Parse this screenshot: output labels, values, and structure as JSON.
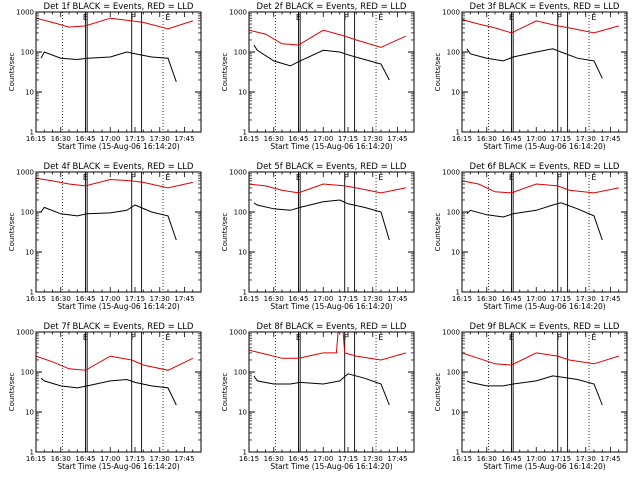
{
  "chart_data": [
    {
      "type": "line",
      "title": "Det 1f BLACK = Events, RED = LLD",
      "xlabel": "Start Time (15-Aug-06 16:14:20)",
      "ylabel": "Counts/sec",
      "xlim": [
        "16:15",
        "17:55"
      ],
      "ylim": [
        1,
        1000
      ],
      "y_scale": "log",
      "x_ticks": [
        "16:15",
        "16:30",
        "16:45",
        "17:00",
        "17:15",
        "17:30",
        "17:45"
      ],
      "y_ticks": [
        "1",
        "10",
        "100",
        "1000"
      ],
      "markers": [
        {
          "label": "E",
          "time": "16:44"
        },
        {
          "label": "F",
          "time": "17:13"
        },
        {
          "label": "E",
          "time": "17:34"
        }
      ],
      "solid_lines": [
        "16:45",
        "16:46",
        "17:13",
        "17:19"
      ],
      "dotted_lines": [
        "16:31",
        "17:32"
      ],
      "series": [
        {
          "name": "Events",
          "color": "#000000",
          "x": [
            "16:18",
            "16:20",
            "16:30",
            "16:40",
            "16:46",
            "17:00",
            "17:10",
            "17:15",
            "17:25",
            "17:35",
            "17:40"
          ],
          "values": [
            70,
            100,
            70,
            65,
            70,
            75,
            100,
            90,
            75,
            70,
            18
          ]
        },
        {
          "name": "LLD",
          "color": "#e00000",
          "x": [
            "16:15",
            "16:25",
            "16:35",
            "16:45",
            "17:00",
            "17:13",
            "17:20",
            "17:35",
            "17:50"
          ],
          "values": [
            700,
            550,
            420,
            450,
            700,
            600,
            550,
            380,
            600
          ]
        }
      ]
    },
    {
      "type": "line",
      "title": "Det 2f BLACK = Events, RED = LLD",
      "xlabel": "Start Time (15-Aug-06 16:14:20)",
      "ylabel": "Counts/sec",
      "xlim": [
        "16:15",
        "17:55"
      ],
      "ylim": [
        1,
        1000
      ],
      "y_scale": "log",
      "x_ticks": [
        "16:15",
        "16:30",
        "16:45",
        "17:00",
        "17:15",
        "17:30",
        "17:45"
      ],
      "y_ticks": [
        "1",
        "10",
        "100",
        "1000"
      ],
      "markers": [
        {
          "label": "E",
          "time": "16:44"
        },
        {
          "label": "F",
          "time": "17:13"
        },
        {
          "label": "E",
          "time": "17:34"
        }
      ],
      "solid_lines": [
        "16:45",
        "16:46",
        "17:13",
        "17:19"
      ],
      "dotted_lines": [
        "16:31",
        "17:32"
      ],
      "series": [
        {
          "name": "Events",
          "color": "#000000",
          "x": [
            "16:18",
            "16:20",
            "16:30",
            "16:40",
            "16:46",
            "17:00",
            "17:10",
            "17:15",
            "17:25",
            "17:35",
            "17:40"
          ],
          "values": [
            150,
            110,
            60,
            45,
            60,
            110,
            100,
            85,
            65,
            50,
            20
          ]
        },
        {
          "name": "LLD",
          "color": "#e00000",
          "x": [
            "16:15",
            "16:25",
            "16:35",
            "16:45",
            "17:00",
            "17:13",
            "17:20",
            "17:35",
            "17:50"
          ],
          "values": [
            350,
            280,
            160,
            150,
            350,
            250,
            200,
            130,
            250
          ]
        }
      ]
    },
    {
      "type": "line",
      "title": "Det 3f BLACK = Events, RED = LLD",
      "xlabel": "Start Time (15-Aug-06 16:14:20)",
      "ylabel": "Counts/sec",
      "xlim": [
        "16:15",
        "17:55"
      ],
      "ylim": [
        1,
        1000
      ],
      "y_scale": "log",
      "x_ticks": [
        "16:15",
        "16:30",
        "16:45",
        "17:00",
        "17:15",
        "17:30",
        "17:45"
      ],
      "y_ticks": [
        "1",
        "10",
        "100",
        "1000"
      ],
      "markers": [
        {
          "label": "E",
          "time": "16:44"
        },
        {
          "label": "F",
          "time": "17:13"
        },
        {
          "label": "E",
          "time": "17:34"
        }
      ],
      "solid_lines": [
        "16:45",
        "16:46",
        "17:13",
        "17:19"
      ],
      "dotted_lines": [
        "16:31",
        "17:32"
      ],
      "series": [
        {
          "name": "Events",
          "color": "#000000",
          "x": [
            "16:18",
            "16:20",
            "16:30",
            "16:40",
            "16:46",
            "17:00",
            "17:10",
            "17:15",
            "17:25",
            "17:35",
            "17:40"
          ],
          "values": [
            120,
            90,
            70,
            60,
            75,
            100,
            120,
            100,
            70,
            60,
            22
          ]
        },
        {
          "name": "LLD",
          "color": "#e00000",
          "x": [
            "16:15",
            "16:25",
            "16:35",
            "16:45",
            "17:00",
            "17:13",
            "17:20",
            "17:35",
            "17:50"
          ],
          "values": [
            650,
            500,
            400,
            300,
            600,
            450,
            400,
            300,
            450
          ]
        }
      ]
    },
    {
      "type": "line",
      "title": "Det 4f BLACK = Events, RED = LLD",
      "xlabel": "Start Time (15-Aug-06 16:14:20)",
      "ylabel": "Counts/sec",
      "xlim": [
        "16:15",
        "17:55"
      ],
      "ylim": [
        1,
        1000
      ],
      "y_scale": "log",
      "x_ticks": [
        "16:15",
        "16:30",
        "16:45",
        "17:00",
        "17:15",
        "17:30",
        "17:45"
      ],
      "y_ticks": [
        "1",
        "10",
        "100",
        "1000"
      ],
      "markers": [
        {
          "label": "E",
          "time": "16:44"
        },
        {
          "label": "F",
          "time": "17:13"
        },
        {
          "label": "E",
          "time": "17:34"
        }
      ],
      "solid_lines": [
        "16:45",
        "16:46",
        "17:13",
        "17:19"
      ],
      "dotted_lines": [
        "16:31",
        "17:32"
      ],
      "series": [
        {
          "name": "Events",
          "color": "#000000",
          "x": [
            "16:18",
            "16:20",
            "16:30",
            "16:40",
            "16:46",
            "17:00",
            "17:10",
            "17:15",
            "17:25",
            "17:35",
            "17:40"
          ],
          "values": [
            100,
            130,
            90,
            80,
            90,
            95,
            110,
            150,
            100,
            80,
            20
          ]
        },
        {
          "name": "LLD",
          "color": "#e00000",
          "x": [
            "16:15",
            "16:25",
            "16:35",
            "16:45",
            "17:00",
            "17:13",
            "17:20",
            "17:35",
            "17:50"
          ],
          "values": [
            700,
            600,
            500,
            450,
            650,
            600,
            550,
            400,
            550
          ]
        }
      ]
    },
    {
      "type": "line",
      "title": "Det 5f BLACK = Events, RED = LLD",
      "xlabel": "Start Time (15-Aug-06 16:14:20)",
      "ylabel": "Counts/sec",
      "xlim": [
        "16:15",
        "17:55"
      ],
      "ylim": [
        1,
        1000
      ],
      "y_scale": "log",
      "x_ticks": [
        "16:15",
        "16:30",
        "16:45",
        "17:00",
        "17:15",
        "17:30",
        "17:45"
      ],
      "y_ticks": [
        "1",
        "10",
        "100",
        "1000"
      ],
      "markers": [
        {
          "label": "E",
          "time": "16:44"
        },
        {
          "label": "F",
          "time": "17:13"
        },
        {
          "label": "E",
          "time": "17:34"
        }
      ],
      "solid_lines": [
        "16:45",
        "16:46",
        "17:13",
        "17:19"
      ],
      "dotted_lines": [
        "16:31",
        "17:32"
      ],
      "series": [
        {
          "name": "Events",
          "color": "#000000",
          "x": [
            "16:18",
            "16:20",
            "16:30",
            "16:40",
            "16:46",
            "17:00",
            "17:10",
            "17:15",
            "17:25",
            "17:35",
            "17:40"
          ],
          "values": [
            170,
            150,
            120,
            110,
            130,
            180,
            200,
            160,
            130,
            100,
            20
          ]
        },
        {
          "name": "LLD",
          "color": "#e00000",
          "x": [
            "16:15",
            "16:25",
            "16:35",
            "16:45",
            "17:00",
            "17:13",
            "17:20",
            "17:35",
            "17:50"
          ],
          "values": [
            500,
            450,
            350,
            300,
            500,
            450,
            400,
            300,
            400
          ]
        }
      ]
    },
    {
      "type": "line",
      "title": "Det 6f BLACK = Events, RED = LLD",
      "xlabel": "Start Time (15-Aug-06 16:14:20)",
      "ylabel": "Counts/sec",
      "xlim": [
        "16:15",
        "17:55"
      ],
      "ylim": [
        1,
        1000
      ],
      "y_scale": "log",
      "x_ticks": [
        "16:15",
        "16:30",
        "16:45",
        "17:00",
        "17:15",
        "17:30",
        "17:45"
      ],
      "y_ticks": [
        "1",
        "10",
        "100",
        "1000"
      ],
      "markers": [
        {
          "label": "E",
          "time": "16:44"
        },
        {
          "label": "F",
          "time": "17:13"
        },
        {
          "label": "E",
          "time": "17:34"
        }
      ],
      "solid_lines": [
        "16:45",
        "16:46",
        "17:13",
        "17:19"
      ],
      "dotted_lines": [
        "16:31",
        "17:32"
      ],
      "series": [
        {
          "name": "Events",
          "color": "#000000",
          "x": [
            "16:18",
            "16:20",
            "16:30",
            "16:40",
            "16:46",
            "17:00",
            "17:10",
            "17:15",
            "17:25",
            "17:35",
            "17:40"
          ],
          "values": [
            90,
            110,
            85,
            75,
            90,
            110,
            150,
            170,
            120,
            80,
            20
          ]
        },
        {
          "name": "LLD",
          "color": "#e00000",
          "x": [
            "16:15",
            "16:25",
            "16:35",
            "16:45",
            "17:00",
            "17:13",
            "17:20",
            "17:35",
            "17:50"
          ],
          "values": [
            600,
            500,
            320,
            300,
            500,
            450,
            350,
            300,
            400
          ]
        }
      ]
    },
    {
      "type": "line",
      "title": "Det 7f BLACK = Events, RED = LLD",
      "xlabel": "Start Time (15-Aug-06 16:14:20)",
      "ylabel": "Counts/sec",
      "xlim": [
        "16:15",
        "17:55"
      ],
      "ylim": [
        1,
        1000
      ],
      "y_scale": "log",
      "x_ticks": [
        "16:15",
        "16:30",
        "16:45",
        "17:00",
        "17:15",
        "17:30",
        "17:45"
      ],
      "y_ticks": [
        "1",
        "10",
        "100",
        "1000"
      ],
      "markers": [
        {
          "label": "E",
          "time": "16:44"
        },
        {
          "label": "F",
          "time": "17:13"
        },
        {
          "label": "E",
          "time": "17:34"
        }
      ],
      "solid_lines": [
        "16:45",
        "16:46",
        "17:13",
        "17:19"
      ],
      "dotted_lines": [
        "16:31",
        "17:32"
      ],
      "series": [
        {
          "name": "Events",
          "color": "#000000",
          "x": [
            "16:18",
            "16:20",
            "16:30",
            "16:40",
            "16:46",
            "17:00",
            "17:10",
            "17:15",
            "17:25",
            "17:35",
            "17:40"
          ],
          "values": [
            70,
            60,
            45,
            40,
            45,
            60,
            65,
            55,
            45,
            40,
            15
          ]
        },
        {
          "name": "LLD",
          "color": "#e00000",
          "x": [
            "16:15",
            "16:25",
            "16:35",
            "16:45",
            "17:00",
            "17:13",
            "17:20",
            "17:35",
            "17:50"
          ],
          "values": [
            250,
            180,
            120,
            110,
            250,
            200,
            150,
            110,
            220
          ]
        }
      ]
    },
    {
      "type": "line",
      "title": "Det 8f BLACK = Events, RED = LLD",
      "xlabel": "Start Time (15-Aug-06 16:14:20)",
      "ylabel": "Counts/sec",
      "xlim": [
        "16:15",
        "17:55"
      ],
      "ylim": [
        1,
        1000
      ],
      "y_scale": "log",
      "x_ticks": [
        "16:15",
        "16:30",
        "16:45",
        "17:00",
        "17:15",
        "17:30",
        "17:45"
      ],
      "y_ticks": [
        "1",
        "10",
        "100",
        "1000"
      ],
      "markers": [
        {
          "label": "E",
          "time": "16:44"
        },
        {
          "label": "F",
          "time": "17:13"
        },
        {
          "label": "E",
          "time": "17:34"
        }
      ],
      "solid_lines": [
        "16:45",
        "16:46",
        "17:13",
        "17:19"
      ],
      "dotted_lines": [
        "16:31",
        "17:32"
      ],
      "series": [
        {
          "name": "Events",
          "color": "#000000",
          "x": [
            "16:18",
            "16:20",
            "16:30",
            "16:40",
            "16:46",
            "17:00",
            "17:10",
            "17:15",
            "17:25",
            "17:35",
            "17:40"
          ],
          "values": [
            80,
            60,
            50,
            50,
            55,
            50,
            60,
            90,
            70,
            50,
            15
          ]
        },
        {
          "name": "LLD",
          "color": "#e00000",
          "x": [
            "16:15",
            "16:25",
            "16:35",
            "16:45",
            "17:00",
            "17:08",
            "17:09",
            "17:12",
            "17:13",
            "17:20",
            "17:35",
            "17:50"
          ],
          "values": [
            350,
            280,
            220,
            220,
            300,
            300,
            1000,
            1000,
            300,
            250,
            200,
            300
          ]
        }
      ]
    },
    {
      "type": "line",
      "title": "Det 9f BLACK = Events, RED = LLD",
      "xlabel": "Start Time (15-Aug-06 16:14:20)",
      "ylabel": "Counts/sec",
      "xlim": [
        "16:15",
        "17:55"
      ],
      "ylim": [
        1,
        1000
      ],
      "y_scale": "log",
      "x_ticks": [
        "16:15",
        "16:30",
        "16:45",
        "17:00",
        "17:15",
        "17:30",
        "17:45"
      ],
      "y_ticks": [
        "1",
        "10",
        "100",
        "1000"
      ],
      "markers": [
        {
          "label": "E",
          "time": "16:44"
        },
        {
          "label": "F",
          "time": "17:13"
        },
        {
          "label": "E",
          "time": "17:34"
        }
      ],
      "solid_lines": [
        "16:45",
        "16:46",
        "17:13",
        "17:19"
      ],
      "dotted_lines": [
        "16:31",
        "17:32"
      ],
      "series": [
        {
          "name": "Events",
          "color": "#000000",
          "x": [
            "16:18",
            "16:20",
            "16:30",
            "16:40",
            "16:46",
            "17:00",
            "17:10",
            "17:15",
            "17:25",
            "17:35",
            "17:40"
          ],
          "values": [
            60,
            55,
            45,
            45,
            50,
            60,
            80,
            75,
            65,
            50,
            15
          ]
        },
        {
          "name": "LLD",
          "color": "#e00000",
          "x": [
            "16:15",
            "16:25",
            "16:35",
            "16:45",
            "17:00",
            "17:13",
            "17:20",
            "17:35",
            "17:50"
          ],
          "values": [
            300,
            220,
            160,
            150,
            300,
            250,
            200,
            160,
            250
          ]
        }
      ]
    }
  ]
}
